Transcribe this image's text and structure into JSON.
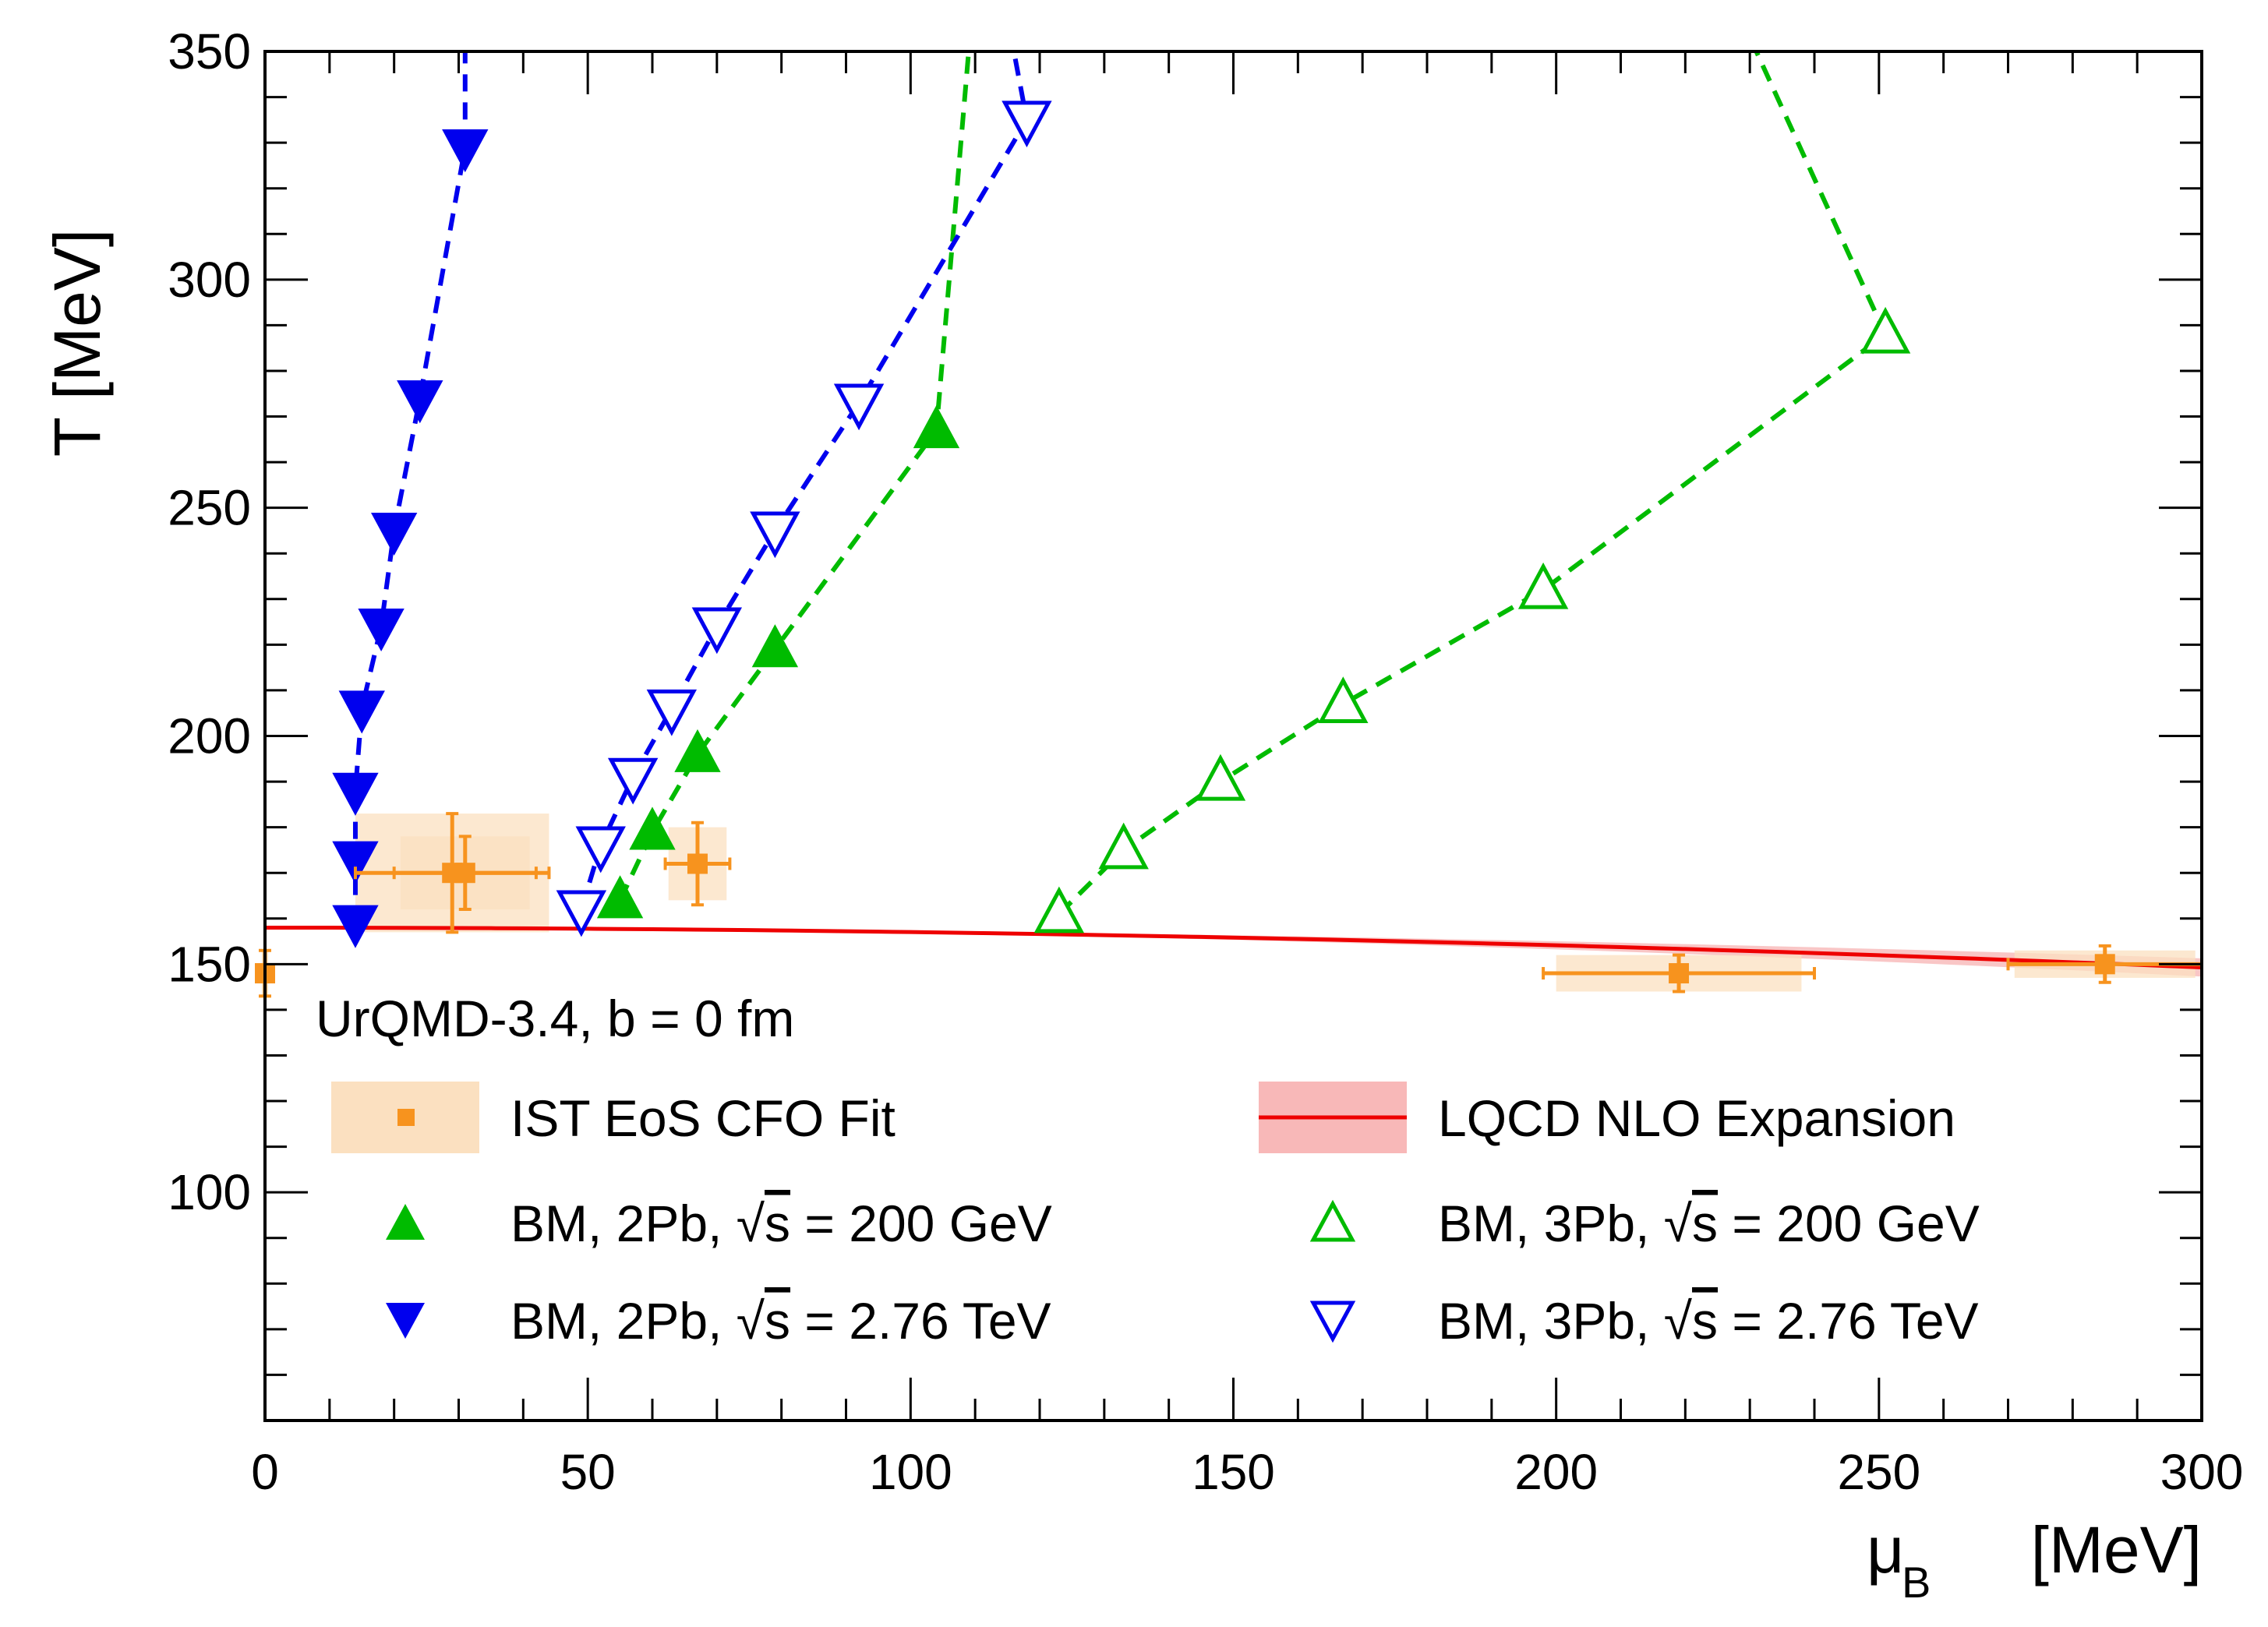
{
  "chart_data": {
    "type": "scatter",
    "title": "",
    "annotation": "UrQMD-3.4, b = 0 fm",
    "xlabel": "μ",
    "xlabel_sub": "B",
    "xlabel_unit": "[MeV]",
    "ylabel": "T [MeV]",
    "xlim": [
      0,
      300
    ],
    "ylim": [
      50,
      350
    ],
    "xticks": [
      0,
      50,
      100,
      150,
      200,
      250,
      300
    ],
    "yticks": [
      100,
      150,
      200,
      250,
      300,
      350
    ],
    "grid": false,
    "legend_position": "bottom-center",
    "colors": {
      "green": "#00bb00",
      "blue": "#0000ee",
      "orange": "#f7931e",
      "orange_band": "#fbe0c0",
      "red": "#ee0000",
      "red_band": "#f8b8b8"
    },
    "series": [
      {
        "name": "BM, 2Pb, √s = 200 GeV",
        "label_prefix": "BM, 2Pb,",
        "label_root": "s",
        "label_suffix": "= 200 GeV",
        "marker": "triangle-up-filled",
        "color": "#00bb00",
        "line": "dashed",
        "points": [
          [
            55,
            164
          ],
          [
            60,
            179
          ],
          [
            67,
            196
          ],
          [
            79,
            219
          ],
          [
            104,
            267
          ],
          [
            109,
            350
          ]
        ]
      },
      {
        "name": "BM, 3Pb, √s = 200 GeV",
        "label_prefix": "BM, 3Pb,",
        "label_root": "s",
        "label_suffix": "= 200 GeV",
        "marker": "triangle-up-open",
        "color": "#00bb00",
        "line": "dashed",
        "points": [
          [
            123,
            161
          ],
          [
            133,
            175
          ],
          [
            148,
            190
          ],
          [
            167,
            207
          ],
          [
            198,
            232
          ],
          [
            251,
            288
          ],
          [
            231,
            350
          ]
        ]
      },
      {
        "name": "BM, 2Pb, √s = 2.76 TeV",
        "label_prefix": "BM, 2Pb,",
        "label_root": "s",
        "label_suffix": "= 2.76 TeV",
        "marker": "triangle-down-filled",
        "color": "#0000ee",
        "line": "dashed",
        "points": [
          [
            14,
            159
          ],
          [
            14,
            173
          ],
          [
            14,
            188
          ],
          [
            15,
            206
          ],
          [
            18,
            224
          ],
          [
            20,
            245
          ],
          [
            24,
            274
          ],
          [
            31,
            329
          ],
          [
            31,
            350
          ]
        ]
      },
      {
        "name": "BM, 3Pb, √s = 2.76 TeV",
        "label_prefix": "BM, 3Pb,",
        "label_root": "s",
        "label_suffix": "= 2.76 TeV",
        "marker": "triangle-down-open",
        "color": "#0000ee",
        "line": "dashed",
        "points": [
          [
            49,
            162
          ],
          [
            52,
            176
          ],
          [
            57,
            191
          ],
          [
            63,
            206
          ],
          [
            70,
            224
          ],
          [
            79,
            245
          ],
          [
            92,
            273
          ],
          [
            118,
            335
          ],
          [
            116,
            350
          ]
        ]
      }
    ],
    "fit_points": {
      "name": "IST EoS CFO Fit",
      "color": "#f7931e",
      "points": [
        {
          "x": 0,
          "y": 148,
          "xerr": 0.5,
          "yerr": 5,
          "sys_x": 0.5,
          "sys_y": 5
        },
        {
          "x": 29,
          "y": 170,
          "xerr": 15,
          "yerr": 13,
          "sys_x": 15,
          "sys_y": 13
        },
        {
          "x": 31,
          "y": 170,
          "xerr": 11,
          "yerr": 8,
          "sys_x": 10,
          "sys_y": 8
        },
        {
          "x": 67,
          "y": 172,
          "xerr": 5,
          "yerr": 9,
          "sys_x": 4.5,
          "sys_y": 8
        },
        {
          "x": 219,
          "y": 148,
          "xerr": 21,
          "yerr": 4,
          "sys_x": 19,
          "sys_y": 4
        },
        {
          "x": 285,
          "y": 150,
          "xerr": 15,
          "yerr": 4,
          "sys_x": 14,
          "sys_y": 3
        }
      ]
    },
    "lqcd_curve": {
      "name": "LQCD NLO Expansion",
      "color": "#ee0000",
      "T0": 158,
      "kappa": 0.0153,
      "band_kappa_low": 0.0118,
      "band_kappa_high": 0.0188
    }
  }
}
